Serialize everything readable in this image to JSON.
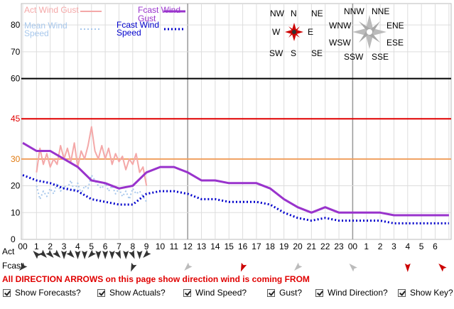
{
  "chart_data": {
    "type": "line",
    "ylim": [
      0,
      88
    ],
    "y_ticks": [
      0,
      10,
      20,
      30,
      45,
      60,
      70,
      80
    ],
    "threshold_lines": [
      {
        "value": 60,
        "color": "#000000"
      },
      {
        "value": 45,
        "color": "#e00000",
        "label_color": "#e00000"
      },
      {
        "value": 30,
        "color": "#f0a060",
        "label_color": "#e07a10"
      }
    ],
    "x_tick_labels": [
      "00",
      "1",
      "2",
      "3",
      "4",
      "5",
      "6",
      "7",
      "8",
      "9",
      "10",
      "11",
      "12",
      "13",
      "14",
      "15",
      "16",
      "17",
      "18",
      "19",
      "20",
      "21",
      "22",
      "23",
      "00",
      "1",
      "2",
      "3",
      "4",
      "5",
      "6"
    ],
    "legend": {
      "act_gust": "Act Wind Gust",
      "fcast_gust_1": "Fcast Wind",
      "fcast_gust_2": "Gust",
      "mean_speed_1": "Mean Wind",
      "mean_speed_2": "Speed",
      "fcast_speed_1": "Fcast Wind",
      "fcast_speed_2": "Speed"
    },
    "series": [
      {
        "name": "Fcast Wind Gust",
        "color": "#9933cc",
        "style": "solid",
        "x": [
          0,
          1,
          2,
          3,
          4,
          5,
          6,
          7,
          8,
          9,
          10,
          11,
          12,
          13,
          14,
          15,
          16,
          17,
          18,
          19,
          20,
          21,
          22,
          23,
          24,
          25,
          26,
          27,
          28,
          29,
          30,
          31
        ],
        "values": [
          36,
          33,
          33,
          30,
          27,
          22,
          21,
          19,
          20,
          25,
          27,
          27,
          25,
          22,
          22,
          21,
          21,
          21,
          19,
          15,
          12,
          10,
          12,
          10,
          10,
          10,
          10,
          9,
          9,
          9,
          9,
          9
        ]
      },
      {
        "name": "Fcast Wind Speed",
        "color": "#0000cc",
        "style": "dotted",
        "x": [
          0,
          1,
          2,
          3,
          4,
          5,
          6,
          7,
          8,
          9,
          10,
          11,
          12,
          13,
          14,
          15,
          16,
          17,
          18,
          19,
          20,
          21,
          22,
          23,
          24,
          25,
          26,
          27,
          28,
          29,
          30,
          31
        ],
        "values": [
          24,
          22,
          21,
          19,
          18,
          15,
          14,
          13,
          13,
          17,
          18,
          18,
          17,
          15,
          15,
          14,
          14,
          14,
          13,
          10,
          8,
          7,
          8,
          7,
          7,
          7,
          7,
          6,
          6,
          6,
          6,
          6
        ]
      },
      {
        "name": "Act Wind Gust",
        "color": "#f4a8a8",
        "style": "solid",
        "x": [
          1,
          1.25,
          1.5,
          1.75,
          2,
          2.25,
          2.5,
          2.75,
          3,
          3.25,
          3.5,
          3.75,
          4,
          4.25,
          4.5,
          4.75,
          5,
          5.25,
          5.5,
          5.75,
          6,
          6.25,
          6.5,
          6.75,
          7,
          7.25,
          7.5,
          7.75,
          8,
          8.25,
          8.5,
          8.75,
          9
        ],
        "values": [
          25,
          34,
          28,
          32,
          27,
          30,
          28,
          35,
          30,
          34,
          29,
          36,
          27,
          33,
          30,
          35,
          42,
          33,
          30,
          35,
          30,
          34,
          28,
          32,
          29,
          31,
          26,
          30,
          28,
          32,
          25,
          27,
          20
        ]
      },
      {
        "name": "Mean Wind Speed",
        "color": "#a8c8ec",
        "style": "dotted",
        "x": [
          1,
          1.25,
          1.5,
          1.75,
          2,
          2.25,
          2.5,
          2.75,
          3,
          3.25,
          3.5,
          3.75,
          4,
          4.25,
          4.5,
          4.75,
          5,
          5.25,
          5.5,
          5.75,
          6,
          6.25,
          6.5,
          6.75,
          7,
          7.25,
          7.5,
          7.75,
          8,
          8.25,
          8.5,
          8.75,
          9
        ],
        "values": [
          20,
          15,
          18,
          16,
          19,
          17,
          21,
          18,
          20,
          19,
          22,
          18,
          21,
          17,
          20,
          19,
          24,
          22,
          20,
          19,
          21,
          18,
          20,
          17,
          19,
          16,
          18,
          15,
          19,
          17,
          18,
          16,
          14
        ]
      }
    ],
    "compass_actual": [
      "NW",
      "N",
      "NE",
      "W",
      "E",
      "SW",
      "S",
      "SE"
    ],
    "compass_forecast": [
      "NNW",
      "NNE",
      "WNW",
      "ENE",
      "WSW",
      "ESE",
      "SSW",
      "SSE"
    ],
    "act_directions": [
      "SE",
      "NW",
      "NW",
      "NW",
      "N",
      "NW",
      "N",
      "N",
      "NE",
      "N",
      "N",
      "N",
      "NNW",
      "N",
      "NNW",
      "N",
      "NE"
    ],
    "fcast_directions": [
      "NE",
      "NNE",
      "NE",
      "NNE",
      "NE",
      "SE",
      "N",
      "SE",
      "SE"
    ],
    "row_labels": {
      "act": "Act",
      "fcast": "Fcast"
    }
  },
  "warning_text": "All DIRECTION ARROWS on this page show direction wind is coming FROM",
  "controls": [
    {
      "label": "Show Forecasts?",
      "checked": true
    },
    {
      "label": "Show Actuals?",
      "checked": true
    },
    {
      "label": "Wind Speed?",
      "checked": true
    },
    {
      "label": "Gust?",
      "checked": true
    },
    {
      "label": "Wind Direction?",
      "checked": true
    },
    {
      "label": "Show Key?",
      "checked": true
    }
  ]
}
